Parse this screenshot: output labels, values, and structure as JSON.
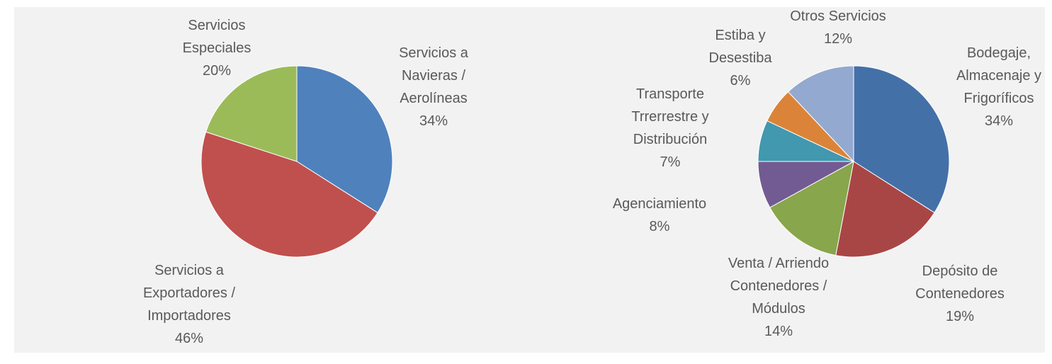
{
  "chart_data": [
    {
      "type": "pie",
      "categories": [
        "Servicios a Navieras / Aerolíneas",
        "Servicios a Exportadores / Importadores",
        "Servicios Especiales"
      ],
      "values": [
        34,
        46,
        20
      ],
      "value_labels": [
        "34%",
        "46%",
        "20%"
      ],
      "colors": [
        "#4f81bd",
        "#c0504d",
        "#9bbb59"
      ]
    },
    {
      "type": "pie",
      "categories": [
        "Bodegaje, Almacenaje y Frigoríficos",
        "Depósito de Contenedores",
        "Venta / Arriendo Contenedores / Módulos",
        "Agenciamiento",
        "Transporte Trrerrestre y Distribución",
        "Estiba y Desestiba",
        "Otros Servicios"
      ],
      "values": [
        34,
        19,
        14,
        8,
        7,
        6,
        12
      ],
      "value_labels": [
        "34%",
        "19%",
        "14%",
        "8%",
        "7%",
        "6%",
        "12%"
      ],
      "colors": [
        "#4470a8",
        "#a84645",
        "#88a64b",
        "#725b92",
        "#4198af",
        "#db8439",
        "#93a9cf"
      ]
    }
  ]
}
